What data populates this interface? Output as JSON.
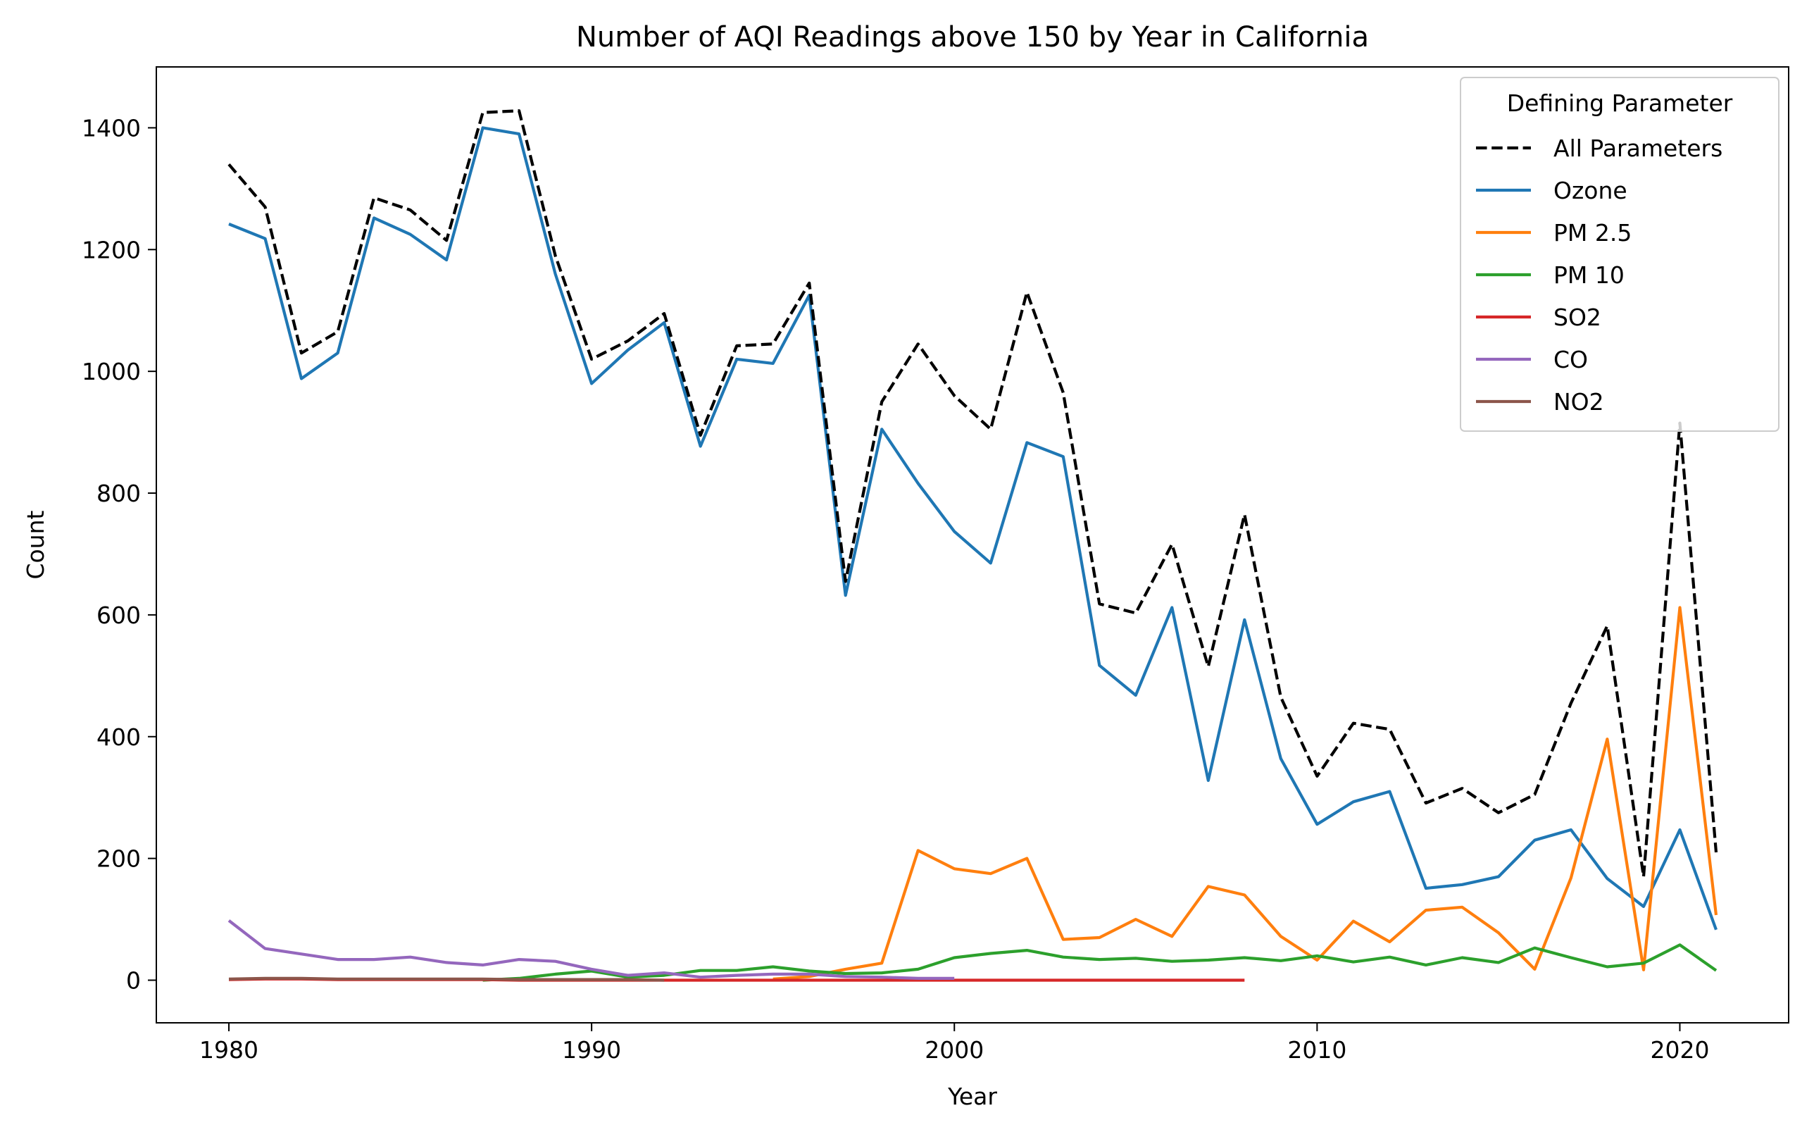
{
  "chart_data": {
    "type": "line",
    "title": "Number of AQI Readings above 150 by Year in California",
    "xlabel": "Year",
    "ylabel": "Count",
    "xlim": [
      1978,
      2023
    ],
    "ylim": [
      -70,
      1500
    ],
    "xticks": [
      1980,
      1990,
      2000,
      2010,
      2020
    ],
    "yticks": [
      0,
      200,
      400,
      600,
      800,
      1000,
      1200,
      1400
    ],
    "grid": false,
    "legend": {
      "title": "Defining Parameter",
      "placement": "top-right"
    },
    "series": [
      {
        "name": "All Parameters",
        "color": "#000000",
        "dashed": true,
        "x": [
          1980,
          1981,
          1982,
          1983,
          1984,
          1985,
          1986,
          1987,
          1988,
          1989,
          1990,
          1991,
          1992,
          1993,
          1994,
          1995,
          1996,
          1997,
          1998,
          1999,
          2000,
          2001,
          2002,
          2003,
          2004,
          2005,
          2006,
          2007,
          2008,
          2009,
          2010,
          2011,
          2012,
          2013,
          2014,
          2015,
          2016,
          2017,
          2018,
          2019,
          2020,
          2021
        ],
        "values": [
          1340,
          1270,
          1030,
          1065,
          1285,
          1265,
          1215,
          1425,
          1428,
          1190,
          1020,
          1050,
          1095,
          895,
          1042,
          1045,
          1145,
          655,
          950,
          1045,
          960,
          905,
          1130,
          965,
          618,
          603,
          716,
          515,
          765,
          465,
          335,
          422,
          412,
          291,
          315,
          275,
          305,
          455,
          582,
          170,
          915,
          210
        ]
      },
      {
        "name": "Ozone",
        "color": "#1f77b4",
        "dashed": false,
        "x": [
          1980,
          1981,
          1982,
          1983,
          1984,
          1985,
          1986,
          1987,
          1988,
          1989,
          1990,
          1991,
          1992,
          1993,
          1994,
          1995,
          1996,
          1997,
          1998,
          1999,
          2000,
          2001,
          2002,
          2003,
          2004,
          2005,
          2006,
          2007,
          2008,
          2009,
          2010,
          2011,
          2012,
          2013,
          2014,
          2015,
          2016,
          2017,
          2018,
          2019,
          2020,
          2021
        ],
        "values": [
          1242,
          1218,
          988,
          1030,
          1252,
          1225,
          1183,
          1400,
          1390,
          1160,
          980,
          1035,
          1080,
          877,
          1020,
          1013,
          1125,
          632,
          905,
          816,
          737,
          685,
          883,
          860,
          517,
          468,
          612,
          328,
          592,
          364,
          256,
          293,
          310,
          151,
          157,
          170,
          230,
          247,
          167,
          121,
          247,
          83
        ]
      },
      {
        "name": "PM 2.5",
        "color": "#ff7f0e",
        "dashed": false,
        "x": [
          1995,
          1996,
          1997,
          1998,
          1999,
          2000,
          2001,
          2002,
          2003,
          2004,
          2005,
          2006,
          2007,
          2008,
          2009,
          2010,
          2011,
          2012,
          2013,
          2014,
          2015,
          2016,
          2017,
          2018,
          2019,
          2020,
          2021
        ],
        "values": [
          2,
          6,
          18,
          28,
          213,
          183,
          175,
          200,
          67,
          70,
          100,
          72,
          154,
          140,
          72,
          33,
          97,
          63,
          115,
          120,
          78,
          18,
          168,
          396,
          17,
          612,
          107
        ]
      },
      {
        "name": "PM 10",
        "color": "#2ca02c",
        "dashed": false,
        "x": [
          1987,
          1988,
          1989,
          1990,
          1991,
          1992,
          1993,
          1994,
          1995,
          1996,
          1997,
          1998,
          1999,
          2000,
          2001,
          2002,
          2003,
          2004,
          2005,
          2006,
          2007,
          2008,
          2009,
          2010,
          2011,
          2012,
          2013,
          2014,
          2015,
          2016,
          2017,
          2018,
          2019,
          2020,
          2021
        ],
        "values": [
          0,
          3,
          10,
          15,
          5,
          8,
          16,
          16,
          22,
          15,
          11,
          12,
          18,
          37,
          44,
          49,
          38,
          34,
          36,
          31,
          33,
          37,
          32,
          40,
          30,
          38,
          25,
          37,
          29,
          53,
          37,
          22,
          28,
          58,
          16
        ]
      },
      {
        "name": "SO2",
        "color": "#d62728",
        "dashed": false,
        "x": [
          1980,
          1981,
          1982,
          1983,
          1984,
          1985,
          1986,
          1987,
          1988,
          1989,
          1990,
          1991,
          1992,
          1993,
          1994,
          1995,
          1996,
          1997,
          1998,
          1999,
          2000,
          2001,
          2002,
          2003,
          2004,
          2005,
          2006,
          2007,
          2008
        ],
        "values": [
          1,
          2,
          2,
          1,
          1,
          1,
          1,
          1,
          0,
          0,
          0,
          0,
          0,
          0,
          0,
          0,
          0,
          0,
          0,
          0,
          0,
          0,
          0,
          0,
          0,
          0,
          0,
          0,
          0
        ]
      },
      {
        "name": "CO",
        "color": "#9467bd",
        "dashed": false,
        "x": [
          1980,
          1981,
          1982,
          1983,
          1984,
          1985,
          1986,
          1987,
          1988,
          1989,
          1990,
          1991,
          1992,
          1993,
          1994,
          1995,
          1996,
          1997,
          1998,
          1999,
          2000
        ],
        "values": [
          98,
          52,
          43,
          34,
          34,
          38,
          29,
          25,
          34,
          31,
          18,
          8,
          12,
          5,
          8,
          10,
          10,
          6,
          5,
          3,
          3
        ]
      },
      {
        "name": "NO2",
        "color": "#8c564b",
        "dashed": false,
        "x": [
          1980,
          1981,
          1982,
          1983,
          1984,
          1985,
          1986,
          1987,
          1988,
          1989,
          1990,
          1991,
          1992
        ],
        "values": [
          2,
          3,
          3,
          2,
          2,
          2,
          2,
          2,
          1,
          1,
          1,
          1,
          0
        ]
      }
    ]
  }
}
